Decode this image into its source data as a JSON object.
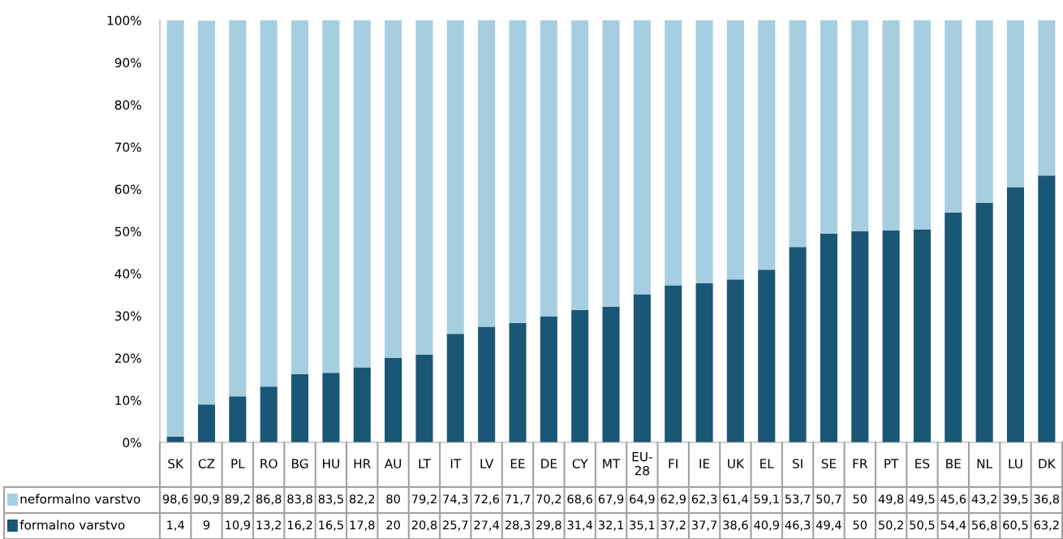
{
  "chart_data": {
    "type": "bar",
    "stacked": true,
    "legend": "bottom left",
    "grid": false,
    "categories": [
      "SK",
      "CZ",
      "PL",
      "RO",
      "BG",
      "HU",
      "HR",
      "AU",
      "LT",
      "IT",
      "LV",
      "EE",
      "DE",
      "CY",
      "MT",
      "EU-28",
      "FI",
      "IE",
      "UK",
      "EL",
      "SI",
      "SE",
      "FR",
      "PT",
      "ES",
      "BE",
      "NL",
      "LU",
      "DK"
    ],
    "series": [
      {
        "name": "formalno varstvo",
        "color": "#1a5675",
        "values": [
          1.4,
          9,
          10.9,
          13.2,
          16.2,
          16.5,
          17.8,
          20,
          20.8,
          25.7,
          27.4,
          28.3,
          29.8,
          31.4,
          32.1,
          35.1,
          37.2,
          37.7,
          38.6,
          40.9,
          46.3,
          49.4,
          50,
          50.2,
          50.5,
          54.4,
          56.8,
          60.5,
          63.2
        ],
        "value_labels": [
          "1,4",
          "9",
          "10,9",
          "13,2",
          "16,2",
          "16,5",
          "17,8",
          "20",
          "20,8",
          "25,7",
          "27,4",
          "28,3",
          "29,8",
          "31,4",
          "32,1",
          "35,1",
          "37,2",
          "37,7",
          "38,6",
          "40,9",
          "46,3",
          "49,4",
          "50",
          "50,2",
          "50,5",
          "54,4",
          "56,8",
          "60,5",
          "63,2"
        ]
      },
      {
        "name": "neformalno varstvo",
        "color": "#a5cfe0",
        "values": [
          98.6,
          90.9,
          89.2,
          86.8,
          83.8,
          83.5,
          82.2,
          80,
          79.2,
          74.3,
          72.6,
          71.7,
          70.2,
          68.6,
          67.9,
          64.9,
          62.9,
          62.3,
          61.4,
          59.1,
          53.7,
          50.7,
          50,
          49.8,
          49.5,
          45.6,
          43.2,
          39.5,
          36.8
        ],
        "value_labels": [
          "98,6",
          "90,9",
          "89,2",
          "86,8",
          "83,8",
          "83,5",
          "82,2",
          "80",
          "79,2",
          "74,3",
          "72,6",
          "71,7",
          "70,2",
          "68,6",
          "67,9",
          "64,9",
          "62,9",
          "62,3",
          "61,4",
          "59,1",
          "53,7",
          "50,7",
          "50",
          "49,8",
          "49,5",
          "45,6",
          "43,2",
          "39,5",
          "36,8"
        ]
      }
    ],
    "ylim": [
      0,
      100
    ],
    "yticks": [
      {
        "value": 0,
        "label": "0%"
      },
      {
        "value": 10,
        "label": "10%"
      },
      {
        "value": 20,
        "label": "20%"
      },
      {
        "value": 30,
        "label": "30%"
      },
      {
        "value": 40,
        "label": "40%"
      },
      {
        "value": 50,
        "label": "50%"
      },
      {
        "value": 60,
        "label": "60%"
      },
      {
        "value": 70,
        "label": "70%"
      },
      {
        "value": 80,
        "label": "80%"
      },
      {
        "value": 90,
        "label": "90%"
      },
      {
        "value": 100,
        "label": "100%"
      }
    ]
  }
}
